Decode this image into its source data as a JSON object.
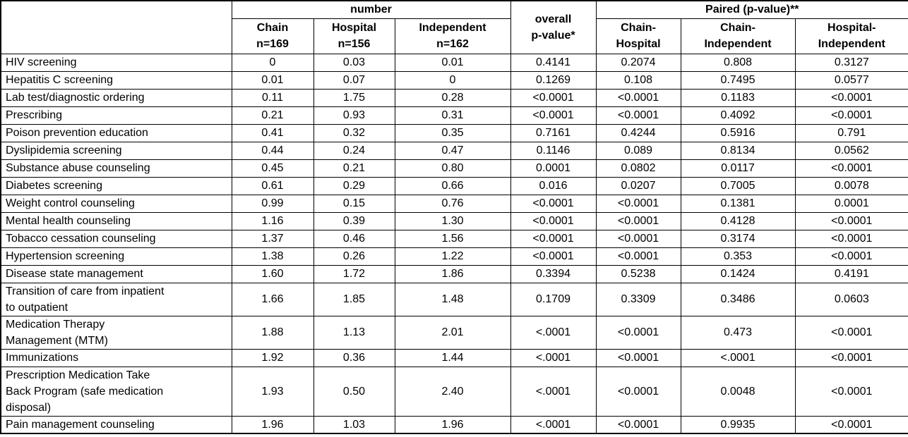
{
  "chart_data": {
    "type": "table",
    "header": {
      "corner": "",
      "number_group": "number",
      "overall": "overall\np-value*",
      "paired_group": "Paired (p-value)**",
      "sub_columns": [
        {
          "id": "chain",
          "label": "Chain\nn=169"
        },
        {
          "id": "hospital",
          "label": "Hospital\nn=156"
        },
        {
          "id": "independent",
          "label": "Independent\nn=162"
        },
        {
          "id": "chain-hospital",
          "label": "Chain-\nHospital"
        },
        {
          "id": "chain-independent",
          "label": "Chain-\nIndependent"
        },
        {
          "id": "hospital-independent",
          "label": "Hospital-\nIndependent"
        }
      ]
    },
    "rows": [
      {
        "label": "HIV screening",
        "values": [
          "0",
          "0.03",
          "0.01",
          "0.4141",
          "0.2074",
          "0.808",
          "0.3127"
        ]
      },
      {
        "label": "Hepatitis C screening",
        "values": [
          "0.01",
          "0.07",
          "0",
          "0.1269",
          "0.108",
          "0.7495",
          "0.0577"
        ]
      },
      {
        "label": "Lab test/diagnostic ordering",
        "values": [
          "0.11",
          "1.75",
          "0.28",
          "<0.0001",
          "<0.0001",
          "0.1183",
          "<0.0001"
        ]
      },
      {
        "label": "Prescribing",
        "values": [
          "0.21",
          "0.93",
          "0.31",
          "<0.0001",
          "<0.0001",
          "0.4092",
          "<0.0001"
        ]
      },
      {
        "label": "Poison prevention education",
        "values": [
          "0.41",
          "0.32",
          "0.35",
          "0.7161",
          "0.4244",
          "0.5916",
          "0.791"
        ]
      },
      {
        "label": "Dyslipidemia screening",
        "values": [
          "0.44",
          "0.24",
          "0.47",
          "0.1146",
          "0.089",
          "0.8134",
          "0.0562"
        ]
      },
      {
        "label": "Substance abuse counseling",
        "values": [
          "0.45",
          "0.21",
          "0.80",
          "0.0001",
          "0.0802",
          "0.0117",
          "<0.0001"
        ]
      },
      {
        "label": "Diabetes screening",
        "values": [
          "0.61",
          "0.29",
          "0.66",
          "0.016",
          "0.0207",
          "0.7005",
          "0.0078"
        ]
      },
      {
        "label": "Weight control counseling",
        "values": [
          "0.99",
          "0.15",
          "0.76",
          "<0.0001",
          "<0.0001",
          "0.1381",
          "0.0001"
        ]
      },
      {
        "label": "Mental health counseling",
        "values": [
          "1.16",
          "0.39",
          "1.30",
          "<0.0001",
          "<0.0001",
          "0.4128",
          "<0.0001"
        ]
      },
      {
        "label": "Tobacco cessation counseling",
        "values": [
          "1.37",
          "0.46",
          "1.56",
          "<0.0001",
          "<0.0001",
          "0.3174",
          "<0.0001"
        ]
      },
      {
        "label": "Hypertension screening",
        "values": [
          "1.38",
          "0.26",
          "1.22",
          "<0.0001",
          "<0.0001",
          "0.353",
          "<0.0001"
        ]
      },
      {
        "label": "Disease state management",
        "values": [
          "1.60",
          "1.72",
          "1.86",
          "0.3394",
          "0.5238",
          "0.1424",
          "0.4191"
        ]
      },
      {
        "label": "Transition of care from inpatient\nto outpatient",
        "values": [
          "1.66",
          "1.85",
          "1.48",
          "0.1709",
          "0.3309",
          "0.3486",
          "0.0603"
        ]
      },
      {
        "label": "Medication Therapy\nManagement (MTM)",
        "values": [
          "1.88",
          "1.13",
          "2.01",
          "<.0001",
          "<0.0001",
          "0.473",
          "<0.0001"
        ]
      },
      {
        "label": "Immunizations",
        "values": [
          "1.92",
          "0.36",
          "1.44",
          "<.0001",
          "<0.0001",
          "<.0001",
          "<0.0001"
        ]
      },
      {
        "label": "Prescription Medication Take\nBack Program (safe medication\ndisposal)",
        "values": [
          "1.93",
          "0.50",
          "2.40",
          "<.0001",
          "<0.0001",
          "0.0048",
          "<0.0001"
        ]
      },
      {
        "label": "Pain management counseling",
        "values": [
          "1.96",
          "1.03",
          "1.96",
          "<.0001",
          "<0.0001",
          "0.9935",
          "<0.0001"
        ]
      }
    ]
  }
}
